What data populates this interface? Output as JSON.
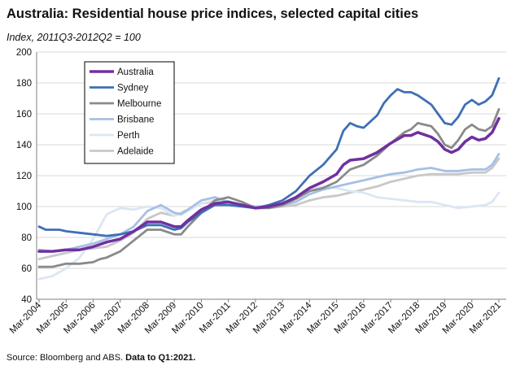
{
  "header": {
    "title": "Australia: Residential house price indices, selected capital cities",
    "subtitle": "Index, 2011Q3-2012Q2  = 100"
  },
  "footer": {
    "source": "Source: Bloomberg and ABS.",
    "note": "Data to Q1:2021."
  },
  "chart_data": {
    "type": "line",
    "title": "Australia: Residential house price indices, selected capital cities",
    "subtitle": "Index, 2011Q3-2012Q2  = 100",
    "ylim": [
      40,
      200
    ],
    "yticks": [
      40,
      60,
      80,
      100,
      120,
      140,
      160,
      180,
      200
    ],
    "xlim": [
      2004.0,
      2021.25
    ],
    "xticks": [
      {
        "x": 2004,
        "label": "Mar-2004"
      },
      {
        "x": 2005,
        "label": "Mar-2005"
      },
      {
        "x": 2006,
        "label": "Mar-2006"
      },
      {
        "x": 2007,
        "label": "Mar-2007"
      },
      {
        "x": 2008,
        "label": "Mar-2008"
      },
      {
        "x": 2009,
        "label": "Mar-2009"
      },
      {
        "x": 2010,
        "label": "Mar-2010"
      },
      {
        "x": 2011,
        "label": "Mar-2011"
      },
      {
        "x": 2012,
        "label": "Mar-2012"
      },
      {
        "x": 2013,
        "label": "Mar-2013"
      },
      {
        "x": 2014,
        "label": "Mar-2014"
      },
      {
        "x": 2015,
        "label": "Mar-2015"
      },
      {
        "x": 2016,
        "label": "Mar-2016"
      },
      {
        "x": 2017,
        "label": "Mar-2017"
      },
      {
        "x": 2018,
        "label": "Mar-2018"
      },
      {
        "x": 2019,
        "label": "Mar-2019"
      },
      {
        "x": 2020,
        "label": "Mar-2020"
      },
      {
        "x": 2021,
        "label": "Mar-2021"
      }
    ],
    "grid": "horizontal",
    "legend": "top-left",
    "series": [
      {
        "name": "Australia",
        "color": "#7030a0",
        "width": 3.5,
        "points": [
          [
            2004.0,
            71
          ],
          [
            2004.5,
            71
          ],
          [
            2005.0,
            72
          ],
          [
            2005.5,
            72
          ],
          [
            2006.0,
            74
          ],
          [
            2006.5,
            77
          ],
          [
            2007.0,
            79
          ],
          [
            2007.5,
            84
          ],
          [
            2008.0,
            90
          ],
          [
            2008.5,
            90
          ],
          [
            2009.0,
            87
          ],
          [
            2009.25,
            87
          ],
          [
            2009.5,
            91
          ],
          [
            2010.0,
            98
          ],
          [
            2010.5,
            102
          ],
          [
            2011.0,
            103
          ],
          [
            2011.5,
            101
          ],
          [
            2012.0,
            99
          ],
          [
            2012.5,
            100
          ],
          [
            2013.0,
            102
          ],
          [
            2013.5,
            106
          ],
          [
            2014.0,
            112
          ],
          [
            2014.5,
            116
          ],
          [
            2015.0,
            121
          ],
          [
            2015.25,
            127
          ],
          [
            2015.5,
            130
          ],
          [
            2016.0,
            131
          ],
          [
            2016.5,
            135
          ],
          [
            2017.0,
            141
          ],
          [
            2017.5,
            146
          ],
          [
            2017.75,
            146
          ],
          [
            2018.0,
            148
          ],
          [
            2018.5,
            145
          ],
          [
            2018.75,
            142
          ],
          [
            2019.0,
            137
          ],
          [
            2019.25,
            135
          ],
          [
            2019.5,
            137
          ],
          [
            2019.75,
            142
          ],
          [
            2020.0,
            145
          ],
          [
            2020.25,
            143
          ],
          [
            2020.5,
            144
          ],
          [
            2020.75,
            148
          ],
          [
            2021.0,
            157
          ]
        ]
      },
      {
        "name": "Sydney",
        "color": "#3f6fb5",
        "width": 2.8,
        "points": [
          [
            2004.0,
            87
          ],
          [
            2004.25,
            85
          ],
          [
            2004.75,
            85
          ],
          [
            2005.0,
            84
          ],
          [
            2005.5,
            83
          ],
          [
            2006.0,
            82
          ],
          [
            2006.5,
            81
          ],
          [
            2007.0,
            82
          ],
          [
            2007.5,
            84
          ],
          [
            2008.0,
            88
          ],
          [
            2008.5,
            88
          ],
          [
            2009.0,
            85
          ],
          [
            2009.25,
            86
          ],
          [
            2009.5,
            90
          ],
          [
            2010.0,
            96
          ],
          [
            2010.5,
            101
          ],
          [
            2011.0,
            101
          ],
          [
            2011.5,
            100
          ],
          [
            2012.0,
            99
          ],
          [
            2012.5,
            101
          ],
          [
            2013.0,
            104
          ],
          [
            2013.5,
            110
          ],
          [
            2014.0,
            120
          ],
          [
            2014.5,
            127
          ],
          [
            2015.0,
            137
          ],
          [
            2015.25,
            149
          ],
          [
            2015.5,
            154
          ],
          [
            2015.75,
            152
          ],
          [
            2016.0,
            151
          ],
          [
            2016.5,
            159
          ],
          [
            2016.75,
            167
          ],
          [
            2017.0,
            172
          ],
          [
            2017.25,
            176
          ],
          [
            2017.5,
            174
          ],
          [
            2017.75,
            174
          ],
          [
            2018.0,
            172
          ],
          [
            2018.5,
            166
          ],
          [
            2018.75,
            160
          ],
          [
            2019.0,
            154
          ],
          [
            2019.25,
            153
          ],
          [
            2019.5,
            158
          ],
          [
            2019.75,
            166
          ],
          [
            2020.0,
            169
          ],
          [
            2020.25,
            166
          ],
          [
            2020.5,
            168
          ],
          [
            2020.75,
            172
          ],
          [
            2021.0,
            183
          ]
        ]
      },
      {
        "name": "Melbourne",
        "color": "#8a8a8a",
        "width": 2.8,
        "points": [
          [
            2004.0,
            61
          ],
          [
            2004.5,
            61
          ],
          [
            2005.0,
            63
          ],
          [
            2005.5,
            63
          ],
          [
            2006.0,
            64
          ],
          [
            2006.25,
            66
          ],
          [
            2006.5,
            67
          ],
          [
            2007.0,
            71
          ],
          [
            2007.5,
            78
          ],
          [
            2008.0,
            85
          ],
          [
            2008.5,
            85
          ],
          [
            2009.0,
            82
          ],
          [
            2009.25,
            82
          ],
          [
            2009.5,
            87
          ],
          [
            2010.0,
            96
          ],
          [
            2010.5,
            104
          ],
          [
            2011.0,
            106
          ],
          [
            2011.5,
            103
          ],
          [
            2012.0,
            99
          ],
          [
            2012.5,
            99
          ],
          [
            2013.0,
            101
          ],
          [
            2013.5,
            105
          ],
          [
            2014.0,
            110
          ],
          [
            2014.5,
            112
          ],
          [
            2015.0,
            116
          ],
          [
            2015.5,
            124
          ],
          [
            2016.0,
            127
          ],
          [
            2016.5,
            133
          ],
          [
            2017.0,
            141
          ],
          [
            2017.5,
            148
          ],
          [
            2017.75,
            150
          ],
          [
            2018.0,
            154
          ],
          [
            2018.5,
            152
          ],
          [
            2018.75,
            147
          ],
          [
            2019.0,
            140
          ],
          [
            2019.25,
            138
          ],
          [
            2019.5,
            143
          ],
          [
            2019.75,
            150
          ],
          [
            2020.0,
            153
          ],
          [
            2020.25,
            150
          ],
          [
            2020.5,
            149
          ],
          [
            2020.75,
            152
          ],
          [
            2021.0,
            163
          ]
        ]
      },
      {
        "name": "Brisbane",
        "color": "#a6c0e4",
        "width": 2.8,
        "points": [
          [
            2004.0,
            72
          ],
          [
            2004.5,
            71
          ],
          [
            2005.0,
            72
          ],
          [
            2005.5,
            74
          ],
          [
            2006.0,
            76
          ],
          [
            2006.5,
            79
          ],
          [
            2007.0,
            82
          ],
          [
            2007.5,
            87
          ],
          [
            2008.0,
            97
          ],
          [
            2008.5,
            101
          ],
          [
            2009.0,
            96
          ],
          [
            2009.25,
            95
          ],
          [
            2009.5,
            98
          ],
          [
            2010.0,
            104
          ],
          [
            2010.5,
            106
          ],
          [
            2011.0,
            103
          ],
          [
            2011.5,
            101
          ],
          [
            2012.0,
            100
          ],
          [
            2012.5,
            100
          ],
          [
            2013.0,
            101
          ],
          [
            2013.5,
            103
          ],
          [
            2014.0,
            108
          ],
          [
            2014.5,
            111
          ],
          [
            2015.0,
            113
          ],
          [
            2015.5,
            115
          ],
          [
            2016.0,
            117
          ],
          [
            2016.5,
            119
          ],
          [
            2017.0,
            121
          ],
          [
            2017.5,
            122
          ],
          [
            2018.0,
            124
          ],
          [
            2018.5,
            125
          ],
          [
            2019.0,
            123
          ],
          [
            2019.5,
            123
          ],
          [
            2020.0,
            124
          ],
          [
            2020.5,
            124
          ],
          [
            2020.75,
            127
          ],
          [
            2021.0,
            134
          ]
        ]
      },
      {
        "name": "Perth",
        "color": "#dce6f4",
        "width": 2.8,
        "points": [
          [
            2004.0,
            53
          ],
          [
            2004.5,
            55
          ],
          [
            2005.0,
            60
          ],
          [
            2005.5,
            67
          ],
          [
            2006.0,
            79
          ],
          [
            2006.5,
            95
          ],
          [
            2007.0,
            99
          ],
          [
            2007.5,
            98
          ],
          [
            2008.0,
            100
          ],
          [
            2008.5,
            99
          ],
          [
            2009.0,
            94
          ],
          [
            2009.5,
            97
          ],
          [
            2010.0,
            102
          ],
          [
            2010.5,
            104
          ],
          [
            2011.0,
            101
          ],
          [
            2011.5,
            100
          ],
          [
            2012.0,
            99
          ],
          [
            2012.5,
            100
          ],
          [
            2013.0,
            102
          ],
          [
            2013.5,
            106
          ],
          [
            2014.0,
            111
          ],
          [
            2014.5,
            113
          ],
          [
            2015.0,
            112
          ],
          [
            2015.5,
            110
          ],
          [
            2016.0,
            109
          ],
          [
            2016.5,
            106
          ],
          [
            2017.0,
            105
          ],
          [
            2017.5,
            104
          ],
          [
            2018.0,
            103
          ],
          [
            2018.5,
            103
          ],
          [
            2019.0,
            101
          ],
          [
            2019.5,
            99
          ],
          [
            2020.0,
            100
          ],
          [
            2020.5,
            101
          ],
          [
            2020.75,
            103
          ],
          [
            2021.0,
            109
          ]
        ]
      },
      {
        "name": "Adelaide",
        "color": "#c8c8c8",
        "width": 2.8,
        "points": [
          [
            2004.0,
            66
          ],
          [
            2004.5,
            68
          ],
          [
            2005.0,
            70
          ],
          [
            2005.5,
            72
          ],
          [
            2006.0,
            73
          ],
          [
            2006.5,
            74
          ],
          [
            2007.0,
            78
          ],
          [
            2007.5,
            83
          ],
          [
            2008.0,
            92
          ],
          [
            2008.5,
            96
          ],
          [
            2009.0,
            94
          ],
          [
            2009.5,
            98
          ],
          [
            2010.0,
            102
          ],
          [
            2010.5,
            103
          ],
          [
            2011.0,
            102
          ],
          [
            2011.5,
            101
          ],
          [
            2012.0,
            100
          ],
          [
            2012.5,
            99
          ],
          [
            2013.0,
            100
          ],
          [
            2013.5,
            101
          ],
          [
            2014.0,
            104
          ],
          [
            2014.5,
            106
          ],
          [
            2015.0,
            107
          ],
          [
            2015.5,
            109
          ],
          [
            2016.0,
            111
          ],
          [
            2016.5,
            113
          ],
          [
            2017.0,
            116
          ],
          [
            2017.5,
            118
          ],
          [
            2018.0,
            120
          ],
          [
            2018.5,
            121
          ],
          [
            2019.0,
            121
          ],
          [
            2019.5,
            121
          ],
          [
            2020.0,
            122
          ],
          [
            2020.5,
            122
          ],
          [
            2020.75,
            125
          ],
          [
            2021.0,
            131
          ]
        ]
      }
    ]
  }
}
